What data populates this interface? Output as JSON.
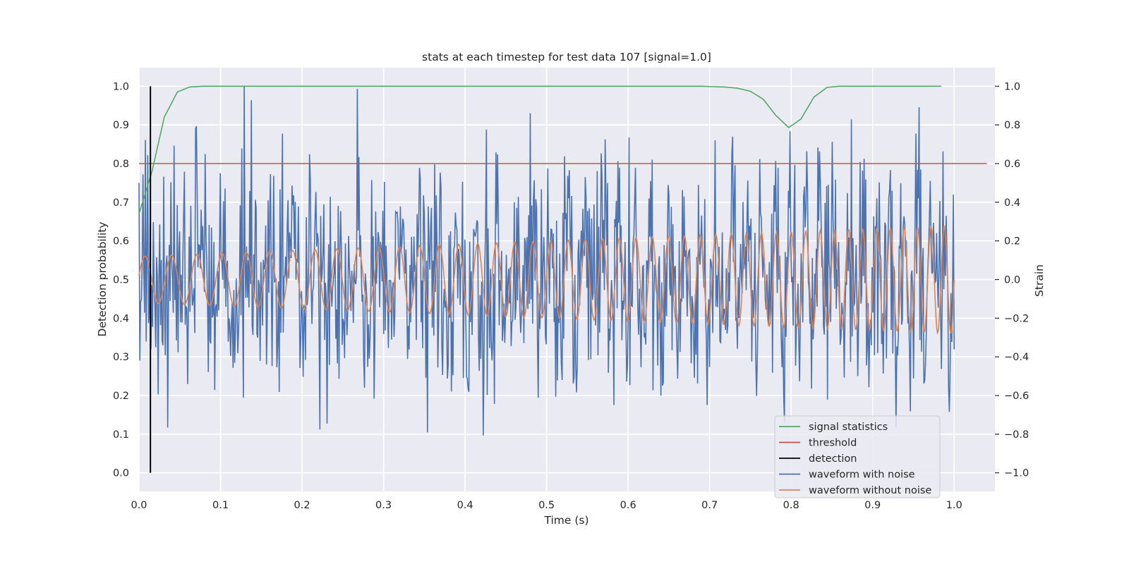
{
  "chart_data": {
    "type": "line",
    "title": "stats at each timestep for test data 107 [signal=1.0]",
    "xlabel": "Time (s)",
    "ylabel_left": "Detection probability",
    "ylabel_right": "Strain",
    "xlim": [
      0.0,
      1.05
    ],
    "ylim_left": [
      -0.048,
      1.048
    ],
    "ylim_right": [
      -1.096,
      1.096
    ],
    "x_ticks": [
      "0.0",
      "0.1",
      "0.2",
      "0.3",
      "0.4",
      "0.5",
      "0.6",
      "0.7",
      "0.8",
      "0.9",
      "1.0"
    ],
    "y_ticks_left": [
      "0.0",
      "0.1",
      "0.2",
      "0.3",
      "0.4",
      "0.5",
      "0.6",
      "0.7",
      "0.8",
      "0.9",
      "1.0"
    ],
    "y_ticks_right": [
      "−1.0",
      "−0.8",
      "−0.6",
      "−0.4",
      "−0.2",
      "0.0",
      "0.2",
      "0.4",
      "0.6",
      "0.8",
      "1.0"
    ],
    "grid": true,
    "legend_position": "lower-right",
    "series": [
      {
        "name": "signal statistics",
        "axis": "left",
        "color": "#55a868",
        "x": [
          0.0,
          0.016,
          0.031,
          0.047,
          0.062,
          0.078,
          0.094,
          0.2,
          0.4,
          0.6,
          0.69,
          0.703,
          0.719,
          0.734,
          0.75,
          0.766,
          0.781,
          0.797,
          0.812,
          0.828,
          0.844,
          0.859,
          0.875,
          0.9,
          0.95,
          0.984
        ],
        "y": [
          0.67,
          0.78,
          0.92,
          0.985,
          0.998,
          1.0,
          1.0,
          1.0,
          1.0,
          1.0,
          1.0,
          0.999,
          0.998,
          0.995,
          0.987,
          0.966,
          0.925,
          0.893,
          0.915,
          0.972,
          0.997,
          1.0,
          1.0,
          1.0,
          1.0,
          1.0
        ]
      },
      {
        "name": "threshold",
        "axis": "left",
        "color": "#c44e52",
        "x": [
          0.0,
          1.04
        ],
        "y": [
          0.8,
          0.8
        ]
      },
      {
        "name": "detection",
        "axis": "left",
        "color": "#000000",
        "x": [
          0.014,
          0.014
        ],
        "y": [
          0.0,
          1.0
        ]
      },
      {
        "name": "waveform with noise",
        "axis": "right",
        "color": "#4c72b0",
        "x_range": [
          0.0,
          1.0
        ],
        "amplitude_std": 0.3,
        "y_min": -0.87,
        "y_max": 1.0
      },
      {
        "name": "waveform without noise",
        "axis": "right",
        "color": "#dd8452",
        "x_range": [
          0.0,
          1.0
        ],
        "amplitude_start": 0.12,
        "amplitude_end": 0.28,
        "freq_start_hz": 30,
        "freq_end_hz": 62
      }
    ]
  }
}
